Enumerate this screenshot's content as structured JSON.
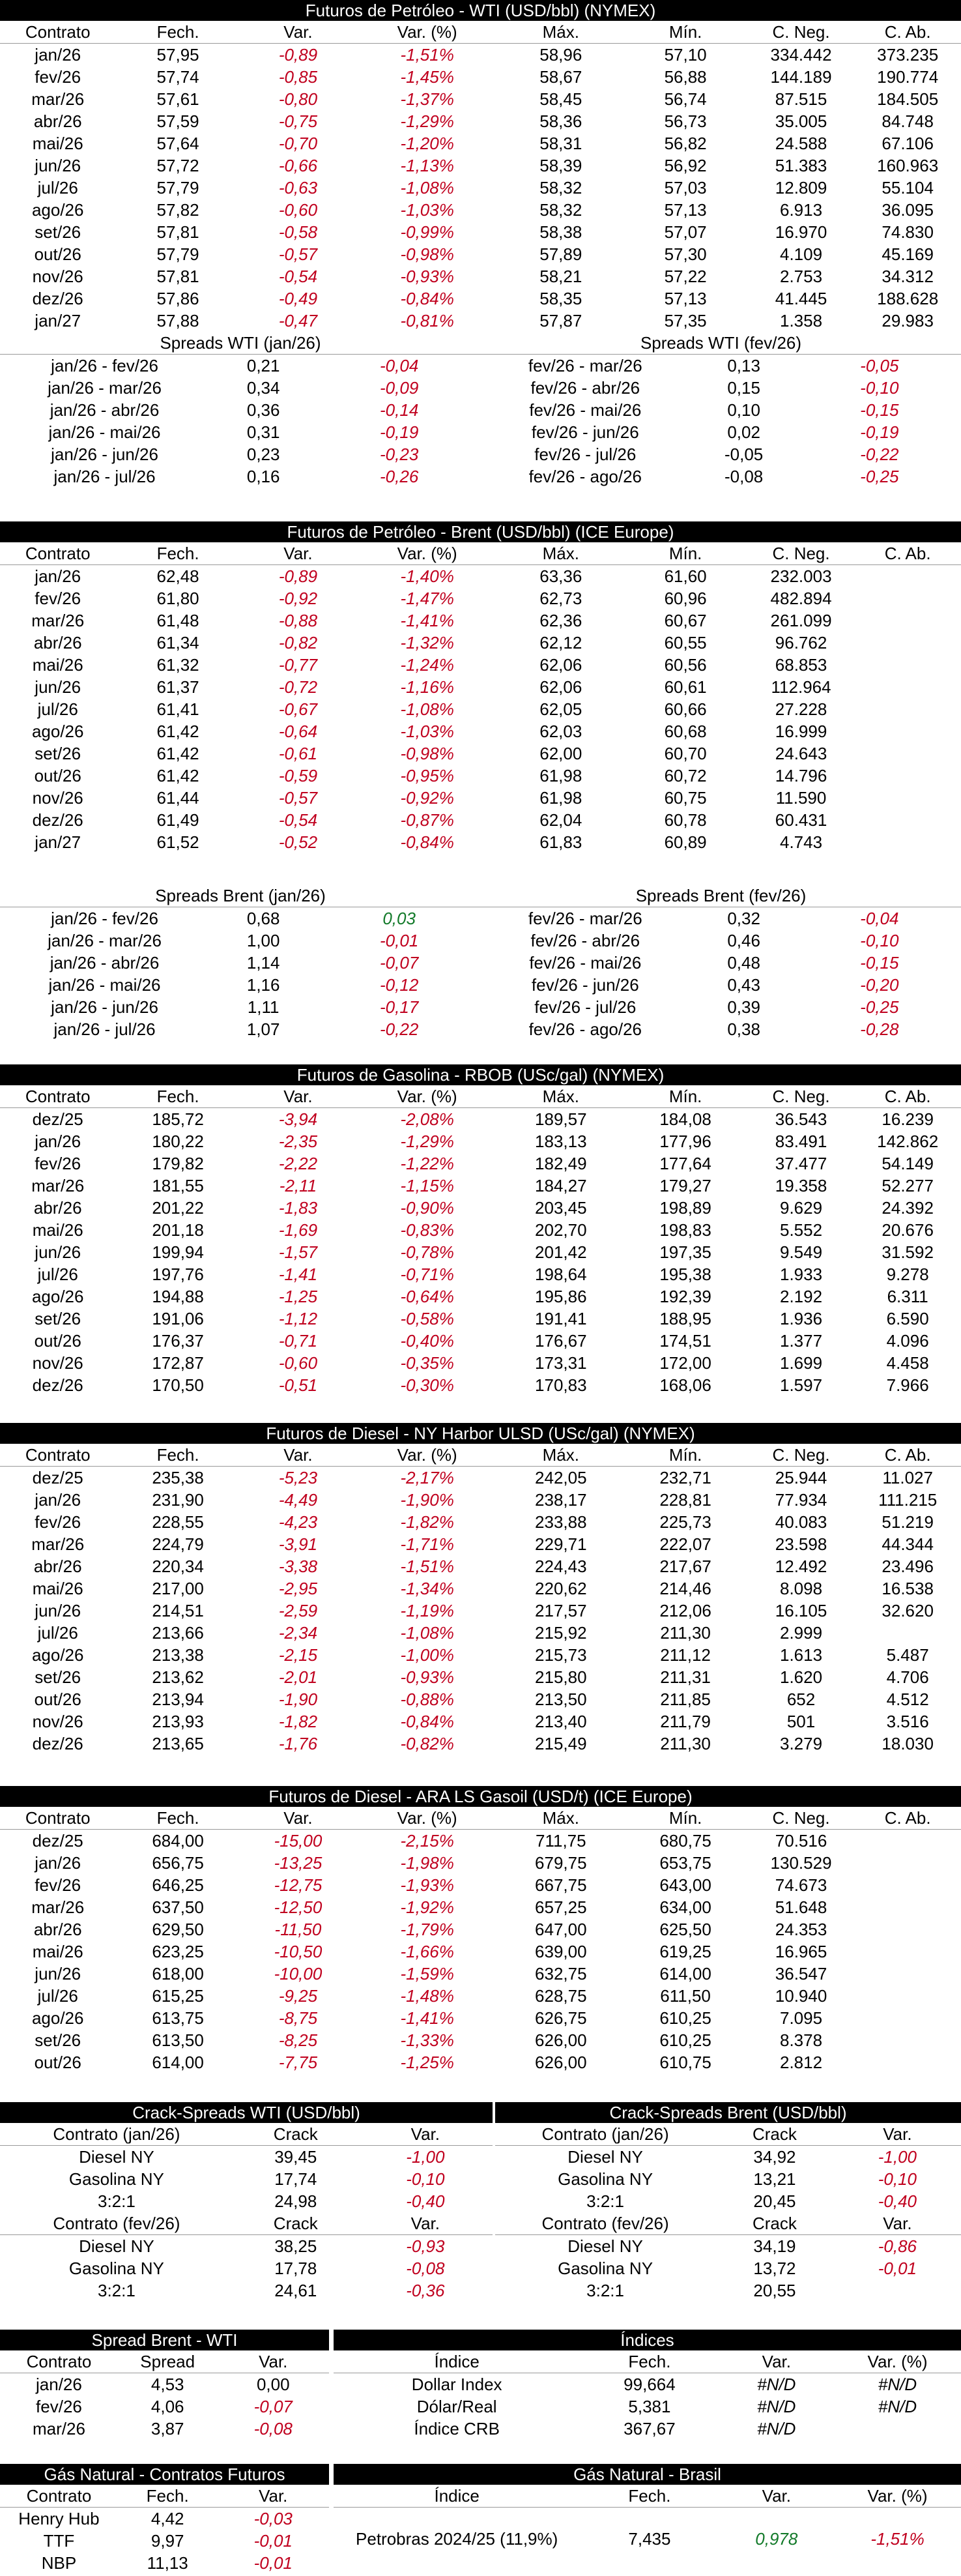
{
  "wti": {
    "title": "Futuros de Petróleo - WTI (USD/bbl) (NYMEX)",
    "headers": [
      "Contrato",
      "Fech.",
      "Var.",
      "Var. (%)",
      "Máx.",
      "Mín.",
      "C. Neg.",
      "C. Ab."
    ],
    "rows": [
      [
        "jan/26",
        "57,95",
        "-0,89",
        "-1,51%",
        "58,96",
        "57,10",
        "334.442",
        "373.235"
      ],
      [
        "fev/26",
        "57,74",
        "-0,85",
        "-1,45%",
        "58,67",
        "56,88",
        "144.189",
        "190.774"
      ],
      [
        "mar/26",
        "57,61",
        "-0,80",
        "-1,37%",
        "58,45",
        "56,74",
        "87.515",
        "184.505"
      ],
      [
        "abr/26",
        "57,59",
        "-0,75",
        "-1,29%",
        "58,36",
        "56,73",
        "35.005",
        "84.748"
      ],
      [
        "mai/26",
        "57,64",
        "-0,70",
        "-1,20%",
        "58,31",
        "56,82",
        "24.588",
        "67.106"
      ],
      [
        "jun/26",
        "57,72",
        "-0,66",
        "-1,13%",
        "58,39",
        "56,92",
        "51.383",
        "160.963"
      ],
      [
        "jul/26",
        "57,79",
        "-0,63",
        "-1,08%",
        "58,32",
        "57,03",
        "12.809",
        "55.104"
      ],
      [
        "ago/26",
        "57,82",
        "-0,60",
        "-1,03%",
        "58,32",
        "57,13",
        "6.913",
        "36.095"
      ],
      [
        "set/26",
        "57,81",
        "-0,58",
        "-0,99%",
        "58,38",
        "57,07",
        "16.970",
        "74.830"
      ],
      [
        "out/26",
        "57,79",
        "-0,57",
        "-0,98%",
        "57,89",
        "57,30",
        "4.109",
        "45.169"
      ],
      [
        "nov/26",
        "57,81",
        "-0,54",
        "-0,93%",
        "58,21",
        "57,22",
        "2.753",
        "34.312"
      ],
      [
        "dez/26",
        "57,86",
        "-0,49",
        "-0,84%",
        "58,35",
        "57,13",
        "41.445",
        "188.628"
      ],
      [
        "jan/27",
        "57,88",
        "-0,47",
        "-0,81%",
        "57,87",
        "57,35",
        "1.358",
        "29.983"
      ]
    ],
    "spreads_left_title": "Spreads WTI (jan/26)",
    "spreads_left": [
      [
        "jan/26 - fev/26",
        "0,21",
        "-0,04"
      ],
      [
        "jan/26 - mar/26",
        "0,34",
        "-0,09"
      ],
      [
        "jan/26 - abr/26",
        "0,36",
        "-0,14"
      ],
      [
        "jan/26 - mai/26",
        "0,31",
        "-0,19"
      ],
      [
        "jan/26 - jun/26",
        "0,23",
        "-0,23"
      ],
      [
        "jan/26 - jul/26",
        "0,16",
        "-0,26"
      ]
    ],
    "spreads_right_title": "Spreads WTI (fev/26)",
    "spreads_right": [
      [
        "fev/26 - mar/26",
        "0,13",
        "-0,05"
      ],
      [
        "fev/26 - abr/26",
        "0,15",
        "-0,10"
      ],
      [
        "fev/26 - mai/26",
        "0,10",
        "-0,15"
      ],
      [
        "fev/26 - jun/26",
        "0,02",
        "-0,19"
      ],
      [
        "fev/26 - jul/26",
        "-0,05",
        "-0,22"
      ],
      [
        "fev/26 - ago/26",
        "-0,08",
        "-0,25"
      ]
    ]
  },
  "brent": {
    "title": "Futuros de Petróleo - Brent (USD/bbl) (ICE Europe)",
    "headers": [
      "Contrato",
      "Fech.",
      "Var.",
      "Var. (%)",
      "Máx.",
      "Mín.",
      "C. Neg.",
      "C. Ab."
    ],
    "rows": [
      [
        "jan/26",
        "62,48",
        "-0,89",
        "-1,40%",
        "63,36",
        "61,60",
        "232.003",
        ""
      ],
      [
        "fev/26",
        "61,80",
        "-0,92",
        "-1,47%",
        "62,73",
        "60,96",
        "482.894",
        ""
      ],
      [
        "mar/26",
        "61,48",
        "-0,88",
        "-1,41%",
        "62,36",
        "60,67",
        "261.099",
        ""
      ],
      [
        "abr/26",
        "61,34",
        "-0,82",
        "-1,32%",
        "62,12",
        "60,55",
        "96.762",
        ""
      ],
      [
        "mai/26",
        "61,32",
        "-0,77",
        "-1,24%",
        "62,06",
        "60,56",
        "68.853",
        ""
      ],
      [
        "jun/26",
        "61,37",
        "-0,72",
        "-1,16%",
        "62,06",
        "60,61",
        "112.964",
        ""
      ],
      [
        "jul/26",
        "61,41",
        "-0,67",
        "-1,08%",
        "62,05",
        "60,66",
        "27.228",
        ""
      ],
      [
        "ago/26",
        "61,42",
        "-0,64",
        "-1,03%",
        "62,03",
        "60,68",
        "16.999",
        ""
      ],
      [
        "set/26",
        "61,42",
        "-0,61",
        "-0,98%",
        "62,00",
        "60,70",
        "24.643",
        ""
      ],
      [
        "out/26",
        "61,42",
        "-0,59",
        "-0,95%",
        "61,98",
        "60,72",
        "14.796",
        ""
      ],
      [
        "nov/26",
        "61,44",
        "-0,57",
        "-0,92%",
        "61,98",
        "60,75",
        "11.590",
        ""
      ],
      [
        "dez/26",
        "61,49",
        "-0,54",
        "-0,87%",
        "62,04",
        "60,78",
        "60.431",
        ""
      ],
      [
        "jan/27",
        "61,52",
        "-0,52",
        "-0,84%",
        "61,83",
        "60,89",
        "4.743",
        ""
      ]
    ],
    "spreads_left_title": "Spreads Brent (jan/26)",
    "spreads_left": [
      [
        "jan/26 - fev/26",
        "0,68",
        "0,03"
      ],
      [
        "jan/26 - mar/26",
        "1,00",
        "-0,01"
      ],
      [
        "jan/26 - abr/26",
        "1,14",
        "-0,07"
      ],
      [
        "jan/26 - mai/26",
        "1,16",
        "-0,12"
      ],
      [
        "jan/26 - jun/26",
        "1,11",
        "-0,17"
      ],
      [
        "jan/26 - jul/26",
        "1,07",
        "-0,22"
      ]
    ],
    "spreads_right_title": "Spreads Brent (fev/26)",
    "spreads_right": [
      [
        "fev/26 - mar/26",
        "0,32",
        "-0,04"
      ],
      [
        "fev/26 - abr/26",
        "0,46",
        "-0,10"
      ],
      [
        "fev/26 - mai/26",
        "0,48",
        "-0,15"
      ],
      [
        "fev/26 - jun/26",
        "0,43",
        "-0,20"
      ],
      [
        "fev/26 - jul/26",
        "0,39",
        "-0,25"
      ],
      [
        "fev/26 - ago/26",
        "0,38",
        "-0,28"
      ]
    ]
  },
  "rbob": {
    "title": "Futuros de Gasolina - RBOB (USc/gal) (NYMEX)",
    "headers": [
      "Contrato",
      "Fech.",
      "Var.",
      "Var. (%)",
      "Máx.",
      "Mín.",
      "C. Neg.",
      "C. Ab."
    ],
    "rows": [
      [
        "dez/25",
        "185,72",
        "-3,94",
        "-2,08%",
        "189,57",
        "184,08",
        "36.543",
        "16.239"
      ],
      [
        "jan/26",
        "180,22",
        "-2,35",
        "-1,29%",
        "183,13",
        "177,96",
        "83.491",
        "142.862"
      ],
      [
        "fev/26",
        "179,82",
        "-2,22",
        "-1,22%",
        "182,49",
        "177,64",
        "37.477",
        "54.149"
      ],
      [
        "mar/26",
        "181,55",
        "-2,11",
        "-1,15%",
        "184,27",
        "179,27",
        "19.358",
        "52.277"
      ],
      [
        "abr/26",
        "201,22",
        "-1,83",
        "-0,90%",
        "203,45",
        "198,89",
        "9.629",
        "24.392"
      ],
      [
        "mai/26",
        "201,18",
        "-1,69",
        "-0,83%",
        "202,70",
        "198,83",
        "5.552",
        "20.676"
      ],
      [
        "jun/26",
        "199,94",
        "-1,57",
        "-0,78%",
        "201,42",
        "197,35",
        "9.549",
        "31.592"
      ],
      [
        "jul/26",
        "197,76",
        "-1,41",
        "-0,71%",
        "198,64",
        "195,38",
        "1.933",
        "9.278"
      ],
      [
        "ago/26",
        "194,88",
        "-1,25",
        "-0,64%",
        "195,86",
        "192,39",
        "2.192",
        "6.311"
      ],
      [
        "set/26",
        "191,06",
        "-1,12",
        "-0,58%",
        "191,41",
        "188,95",
        "1.936",
        "6.590"
      ],
      [
        "out/26",
        "176,37",
        "-0,71",
        "-0,40%",
        "176,67",
        "174,51",
        "1.377",
        "4.096"
      ],
      [
        "nov/26",
        "172,87",
        "-0,60",
        "-0,35%",
        "173,31",
        "172,00",
        "1.699",
        "4.458"
      ],
      [
        "dez/26",
        "170,50",
        "-0,51",
        "-0,30%",
        "170,83",
        "168,06",
        "1.597",
        "7.966"
      ]
    ]
  },
  "ulsd": {
    "title": "Futuros de Diesel - NY Harbor ULSD (USc/gal) (NYMEX)",
    "headers": [
      "Contrato",
      "Fech.",
      "Var.",
      "Var. (%)",
      "Máx.",
      "Mín.",
      "C. Neg.",
      "C. Ab."
    ],
    "rows": [
      [
        "dez/25",
        "235,38",
        "-5,23",
        "-2,17%",
        "242,05",
        "232,71",
        "25.944",
        "11.027"
      ],
      [
        "jan/26",
        "231,90",
        "-4,49",
        "-1,90%",
        "238,17",
        "228,81",
        "77.934",
        "111.215"
      ],
      [
        "fev/26",
        "228,55",
        "-4,23",
        "-1,82%",
        "233,88",
        "225,73",
        "40.083",
        "51.219"
      ],
      [
        "mar/26",
        "224,79",
        "-3,91",
        "-1,71%",
        "229,71",
        "222,07",
        "23.598",
        "44.344"
      ],
      [
        "abr/26",
        "220,34",
        "-3,38",
        "-1,51%",
        "224,43",
        "217,67",
        "12.492",
        "23.496"
      ],
      [
        "mai/26",
        "217,00",
        "-2,95",
        "-1,34%",
        "220,62",
        "214,46",
        "8.098",
        "16.538"
      ],
      [
        "jun/26",
        "214,51",
        "-2,59",
        "-1,19%",
        "217,57",
        "212,06",
        "16.105",
        "32.620"
      ],
      [
        "jul/26",
        "213,66",
        "-2,34",
        "-1,08%",
        "215,92",
        "211,30",
        "2.999",
        ""
      ],
      [
        "ago/26",
        "213,38",
        "-2,15",
        "-1,00%",
        "215,73",
        "211,12",
        "1.613",
        "5.487"
      ],
      [
        "set/26",
        "213,62",
        "-2,01",
        "-0,93%",
        "215,80",
        "211,31",
        "1.620",
        "4.706"
      ],
      [
        "out/26",
        "213,94",
        "-1,90",
        "-0,88%",
        "213,50",
        "211,85",
        "652",
        "4.512"
      ],
      [
        "nov/26",
        "213,93",
        "-1,82",
        "-0,84%",
        "213,40",
        "211,79",
        "501",
        "3.516"
      ],
      [
        "dez/26",
        "213,65",
        "-1,76",
        "-0,82%",
        "215,49",
        "211,30",
        "3.279",
        "18.030"
      ]
    ]
  },
  "gasoil": {
    "title": "Futuros de Diesel - ARA LS Gasoil (USD/t) (ICE Europe)",
    "headers": [
      "Contrato",
      "Fech.",
      "Var.",
      "Var. (%)",
      "Máx.",
      "Mín.",
      "C. Neg.",
      "C. Ab."
    ],
    "rows": [
      [
        "dez/25",
        "684,00",
        "-15,00",
        "-2,15%",
        "711,75",
        "680,75",
        "70.516",
        ""
      ],
      [
        "jan/26",
        "656,75",
        "-13,25",
        "-1,98%",
        "679,75",
        "653,75",
        "130.529",
        ""
      ],
      [
        "fev/26",
        "646,25",
        "-12,75",
        "-1,93%",
        "667,75",
        "643,00",
        "74.673",
        ""
      ],
      [
        "mar/26",
        "637,50",
        "-12,50",
        "-1,92%",
        "657,25",
        "634,00",
        "51.648",
        ""
      ],
      [
        "abr/26",
        "629,50",
        "-11,50",
        "-1,79%",
        "647,00",
        "625,50",
        "24.353",
        ""
      ],
      [
        "mai/26",
        "623,25",
        "-10,50",
        "-1,66%",
        "639,00",
        "619,25",
        "16.965",
        ""
      ],
      [
        "jun/26",
        "618,00",
        "-10,00",
        "-1,59%",
        "632,75",
        "614,00",
        "36.547",
        ""
      ],
      [
        "jul/26",
        "615,25",
        "-9,25",
        "-1,48%",
        "628,75",
        "611,50",
        "10.940",
        ""
      ],
      [
        "ago/26",
        "613,75",
        "-8,75",
        "-1,41%",
        "626,75",
        "610,25",
        "7.095",
        ""
      ],
      [
        "set/26",
        "613,50",
        "-8,25",
        "-1,33%",
        "626,00",
        "610,25",
        "8.378",
        ""
      ],
      [
        "out/26",
        "614,00",
        "-7,75",
        "-1,25%",
        "626,00",
        "610,75",
        "2.812",
        ""
      ]
    ]
  },
  "crack": {
    "left_title": "Crack-Spreads WTI (USD/bbl)",
    "right_title": "Crack-Spreads Brent (USD/bbl)",
    "col_crack": "Crack",
    "col_var": "Var.",
    "left_blocks": [
      {
        "label": "Contrato (jan/26)",
        "rows": [
          [
            "Diesel NY",
            "39,45",
            "-1,00"
          ],
          [
            "Gasolina NY",
            "17,74",
            "-0,10"
          ],
          [
            "3:2:1",
            "24,98",
            "-0,40"
          ]
        ]
      },
      {
        "label": "Contrato (fev/26)",
        "rows": [
          [
            "Diesel NY",
            "38,25",
            "-0,93"
          ],
          [
            "Gasolina NY",
            "17,78",
            "-0,08"
          ],
          [
            "3:2:1",
            "24,61",
            "-0,36"
          ]
        ]
      }
    ],
    "right_blocks": [
      {
        "label": "Contrato (jan/26)",
        "rows": [
          [
            "Diesel NY",
            "34,92",
            "-1,00"
          ],
          [
            "Gasolina NY",
            "13,21",
            "-0,10"
          ],
          [
            "3:2:1",
            "20,45",
            "-0,40"
          ]
        ]
      },
      {
        "label": "Contrato (fev/26)",
        "rows": [
          [
            "Diesel NY",
            "34,19",
            "-0,86"
          ],
          [
            "Gasolina NY",
            "13,72",
            "-0,01"
          ],
          [
            "3:2:1",
            "20,55",
            ""
          ]
        ]
      }
    ]
  },
  "spread_bw": {
    "title": "Spread Brent - WTI",
    "headers": [
      "Contrato",
      "Spread",
      "Var."
    ],
    "rows": [
      [
        "jan/26",
        "4,53",
        "0,00"
      ],
      [
        "fev/26",
        "4,06",
        "-0,07"
      ],
      [
        "mar/26",
        "3,87",
        "-0,08"
      ]
    ]
  },
  "indices": {
    "title": "Índices",
    "headers": [
      "Índice",
      "Fech.",
      "Var.",
      "Var. (%)"
    ],
    "rows": [
      [
        "Dollar Index",
        "99,664",
        "#N/D",
        "#N/D"
      ],
      [
        "Dólar/Real",
        "5,381",
        "#N/D",
        "#N/D"
      ],
      [
        "Índice CRB",
        "367,67",
        "#N/D",
        ""
      ]
    ]
  },
  "gas_futures": {
    "title": "Gás Natural - Contratos Futuros",
    "headers": [
      "Contrato",
      "Fech.",
      "Var."
    ],
    "rows": [
      [
        "Henry Hub",
        "4,42",
        "-0,03"
      ],
      [
        "TTF",
        "9,97",
        "-0,01"
      ],
      [
        "NBP",
        "11,13",
        "-0,01"
      ]
    ]
  },
  "gas_brasil": {
    "title": "Gás Natural - Brasil",
    "headers": [
      "Índice",
      "Fech.",
      "Var.",
      "Var. (%)"
    ],
    "row": [
      "Petrobras 2024/25 (11,9%)",
      "7,435",
      "0,978",
      "-1,51%"
    ]
  },
  "colors": {
    "negative": "#c0001e",
    "positive": "#137a2a",
    "title_bg": "#000000"
  }
}
